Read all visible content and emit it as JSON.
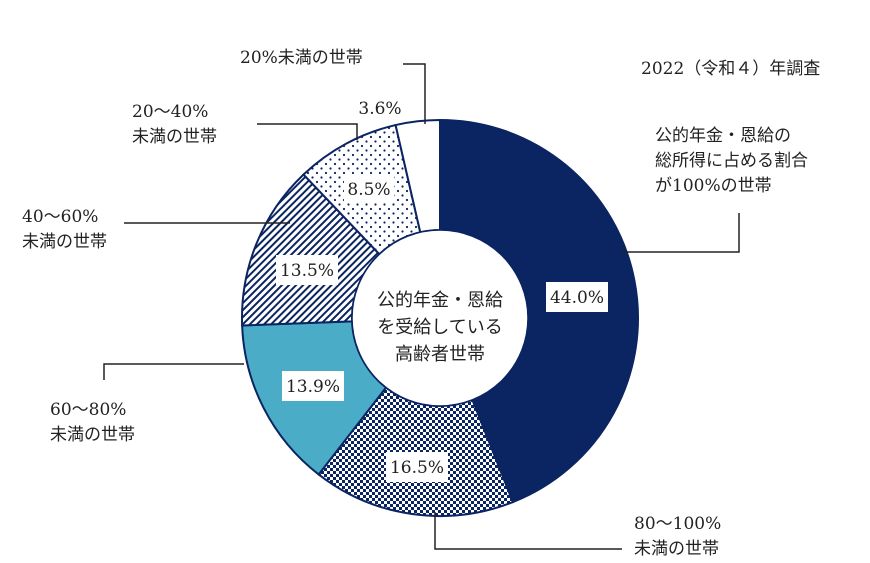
{
  "chart_data": {
    "type": "pie",
    "subtype": "donut",
    "title": "公的年金・恩給を受給している高齢者世帯",
    "subtitle": "2022（令和４）年調査",
    "center_label": [
      "公的年金・恩給",
      "を受給している",
      "高齢者世帯"
    ],
    "categories": [
      "公的年金・恩給の総所得に占める割合が100%の世帯",
      "80〜100%未満の世帯",
      "60〜80%未満の世帯",
      "40〜60%未満の世帯",
      "20〜40%未満の世帯",
      "20%未満の世帯"
    ],
    "values": [
      44.0,
      16.5,
      13.9,
      13.5,
      8.5,
      3.6
    ],
    "value_labels": [
      "44.0%",
      "16.5%",
      "13.9%",
      "13.5%",
      "8.5%",
      "3.6%"
    ],
    "fills": [
      "solid navy",
      "navy checker",
      "solid teal",
      "navy diagonal hatch",
      "navy dots",
      "white"
    ],
    "colors": {
      "navy": "#0b2462",
      "teal": "#4aacc6",
      "white": "#ffffff",
      "outline": "#0b2462"
    },
    "start_angle": "12 o'clock",
    "direction": "clockwise",
    "legend": "leader-line callouts"
  },
  "labels": {
    "survey": "2022（令和４）年調査",
    "s100": [
      "公的年金・恩給の",
      "総所得に占める割合",
      "が100%の世帯"
    ],
    "s80": [
      "80〜100%",
      "未満の世帯"
    ],
    "s60": [
      "60〜80%",
      "未満の世帯"
    ],
    "s40": [
      "40〜60%",
      "未満の世帯"
    ],
    "s20": [
      "20〜40%",
      "未満の世帯"
    ],
    "s0": "20%未満の世帯"
  },
  "values": {
    "v100": "44.0%",
    "v80": "16.5%",
    "v60": "13.9%",
    "v40": "13.5%",
    "v20": "8.5%",
    "v0": "3.6%"
  },
  "center": [
    "公的年金・恩給",
    "を受給している",
    "高齢者世帯"
  ]
}
